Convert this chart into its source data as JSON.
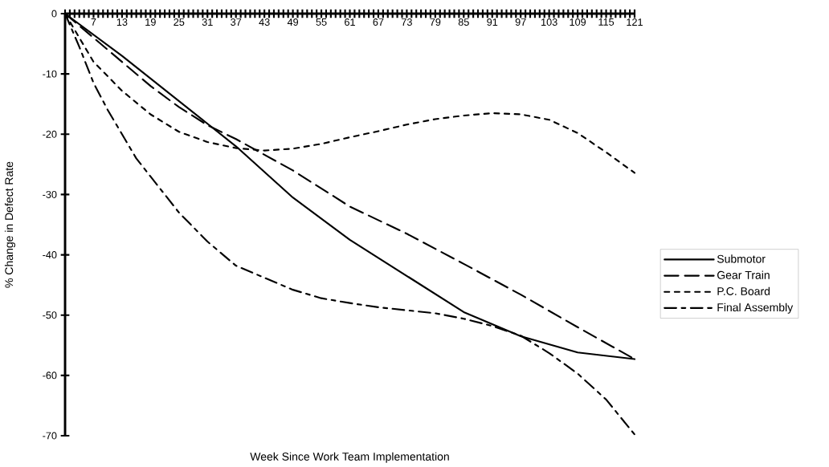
{
  "chart_data": {
    "type": "line",
    "xlabel": "Week Since Work Team Implementation",
    "ylabel": "% Change in Defect Rate",
    "xlim": [
      1,
      121
    ],
    "ylim": [
      -70,
      0
    ],
    "yticks": [
      0,
      -10,
      -20,
      -30,
      -40,
      -50,
      -60,
      -70
    ],
    "xticks": [
      {
        "value": 1,
        "label": null
      },
      {
        "value": 2,
        "label": null
      },
      {
        "value": 3,
        "label": null
      },
      {
        "value": 4,
        "label": null
      },
      {
        "value": 5,
        "label": null
      },
      {
        "value": 6,
        "label": null
      },
      7,
      {
        "value": 8,
        "label": null
      },
      {
        "value": 9,
        "label": null
      },
      {
        "value": 10,
        "label": null
      },
      {
        "value": 11,
        "label": null
      },
      {
        "value": 12,
        "label": null
      },
      13,
      {
        "value": 14,
        "label": null
      },
      {
        "value": 15,
        "label": null
      },
      {
        "value": 16,
        "label": null
      },
      {
        "value": 17,
        "label": null
      },
      {
        "value": 18,
        "label": null
      },
      19,
      {
        "value": 20,
        "label": null
      },
      {
        "value": 21,
        "label": null
      },
      {
        "value": 22,
        "label": null
      },
      {
        "value": 23,
        "label": null
      },
      {
        "value": 24,
        "label": null
      },
      25,
      {
        "value": 26,
        "label": null
      },
      {
        "value": 27,
        "label": null
      },
      {
        "value": 28,
        "label": null
      },
      {
        "value": 29,
        "label": null
      },
      {
        "value": 30,
        "label": null
      },
      31,
      {
        "value": 32,
        "label": null
      },
      {
        "value": 33,
        "label": null
      },
      {
        "value": 34,
        "label": null
      },
      {
        "value": 35,
        "label": null
      },
      {
        "value": 36,
        "label": null
      },
      37,
      {
        "value": 38,
        "label": null
      },
      {
        "value": 39,
        "label": null
      },
      {
        "value": 40,
        "label": null
      },
      {
        "value": 41,
        "label": null
      },
      {
        "value": 42,
        "label": null
      },
      43,
      {
        "value": 44,
        "label": null
      },
      {
        "value": 45,
        "label": null
      },
      {
        "value": 46,
        "label": null
      },
      {
        "value": 47,
        "label": null
      },
      {
        "value": 48,
        "label": null
      },
      49,
      {
        "value": 50,
        "label": null
      },
      {
        "value": 51,
        "label": null
      },
      {
        "value": 52,
        "label": null
      },
      {
        "value": 53,
        "label": null
      },
      {
        "value": 54,
        "label": null
      },
      55,
      {
        "value": 56,
        "label": null
      },
      {
        "value": 57,
        "label": null
      },
      {
        "value": 58,
        "label": null
      },
      {
        "value": 59,
        "label": null
      },
      {
        "value": 60,
        "label": null
      },
      61,
      {
        "value": 62,
        "label": null
      },
      {
        "value": 63,
        "label": null
      },
      {
        "value": 64,
        "label": null
      },
      {
        "value": 65,
        "label": null
      },
      {
        "value": 66,
        "label": null
      },
      67,
      {
        "value": 68,
        "label": null
      },
      {
        "value": 69,
        "label": null
      },
      {
        "value": 70,
        "label": null
      },
      {
        "value": 71,
        "label": null
      },
      {
        "value": 72,
        "label": null
      },
      73,
      {
        "value": 74,
        "label": null
      },
      {
        "value": 75,
        "label": null
      },
      {
        "value": 76,
        "label": null
      },
      {
        "value": 77,
        "label": null
      },
      {
        "value": 78,
        "label": null
      },
      79,
      {
        "value": 80,
        "label": null
      },
      {
        "value": 81,
        "label": null
      },
      {
        "value": 82,
        "label": null
      },
      {
        "value": 83,
        "label": null
      },
      {
        "value": 84,
        "label": null
      },
      85,
      {
        "value": 86,
        "label": null
      },
      {
        "value": 87,
        "label": null
      },
      {
        "value": 88,
        "label": null
      },
      {
        "value": 89,
        "label": null
      },
      {
        "value": 90,
        "label": null
      },
      91,
      {
        "value": 92,
        "label": null
      },
      {
        "value": 93,
        "label": null
      },
      {
        "value": 94,
        "label": null
      },
      {
        "value": 95,
        "label": null
      },
      {
        "value": 96,
        "label": null
      },
      97,
      {
        "value": 98,
        "label": null
      },
      {
        "value": 99,
        "label": null
      },
      {
        "value": 100,
        "label": null
      },
      {
        "value": 101,
        "label": null
      },
      {
        "value": 102,
        "label": null
      },
      103,
      {
        "value": 104,
        "label": null
      },
      {
        "value": 105,
        "label": null
      },
      {
        "value": 106,
        "label": null
      },
      {
        "value": 107,
        "label": null
      },
      {
        "value": 108,
        "label": null
      },
      109,
      {
        "value": 110,
        "label": null
      },
      {
        "value": 111,
        "label": null
      },
      {
        "value": 112,
        "label": null
      },
      {
        "value": 113,
        "label": null
      },
      {
        "value": 114,
        "label": null
      },
      115,
      {
        "value": 116,
        "label": null
      },
      {
        "value": 117,
        "label": null
      },
      {
        "value": 118,
        "label": null
      },
      {
        "value": 119,
        "label": null
      },
      {
        "value": 120,
        "label": null
      },
      121
    ],
    "legend": "right",
    "grid": false,
    "marker": "none",
    "series": [
      {
        "name": "Submotor",
        "color": "#000000",
        "line_style": "solid",
        "x": [
          1,
          13,
          25,
          37,
          49,
          61,
          73,
          85,
          97,
          109,
          121
        ],
        "values": [
          0,
          -7,
          -14.5,
          -22,
          -30.5,
          -37.5,
          -43.5,
          -49.5,
          -53.5,
          -56.2,
          -57.3
        ]
      },
      {
        "name": "Gear Train",
        "color": "#000000",
        "line_style": "dashed",
        "x": [
          1,
          7,
          13,
          19,
          25,
          31,
          37,
          49,
          61,
          73,
          85,
          97,
          109,
          121
        ],
        "values": [
          0,
          -4,
          -8,
          -12,
          -15.5,
          -18.5,
          -20.8,
          -26,
          -32,
          -36.5,
          -41.5,
          -46.6,
          -52,
          -57.3
        ]
      },
      {
        "name": "P.C. Board",
        "color": "#000000",
        "line_style": "dotted",
        "x": [
          1,
          7,
          13,
          19,
          25,
          31,
          37,
          43,
          49,
          55,
          61,
          67,
          73,
          79,
          85,
          91,
          97,
          103,
          109,
          115,
          121
        ],
        "values": [
          0,
          -8,
          -12.8,
          -16.7,
          -19.6,
          -21.3,
          -22.3,
          -22.7,
          -22.4,
          -21.6,
          -20.5,
          -19.5,
          -18.4,
          -17.5,
          -16.9,
          -16.5,
          -16.7,
          -17.6,
          -19.8,
          -23,
          -26.4
        ]
      },
      {
        "name": "Final Assembly",
        "color": "#000000",
        "line_style": "dashdot",
        "x": [
          1,
          4,
          7,
          10,
          13,
          16,
          19,
          25,
          31,
          37,
          43,
          49,
          55,
          61,
          67,
          73,
          79,
          85,
          91,
          97,
          103,
          109,
          115,
          121
        ],
        "values": [
          0,
          -5.5,
          -11.5,
          -16,
          -20,
          -24,
          -27,
          -33,
          -37.8,
          -41.8,
          -43.8,
          -45.8,
          -47.2,
          -48,
          -48.7,
          -49.2,
          -49.7,
          -50.6,
          -51.8,
          -53.4,
          -56.3,
          -59.7,
          -64,
          -69.8
        ]
      }
    ]
  }
}
